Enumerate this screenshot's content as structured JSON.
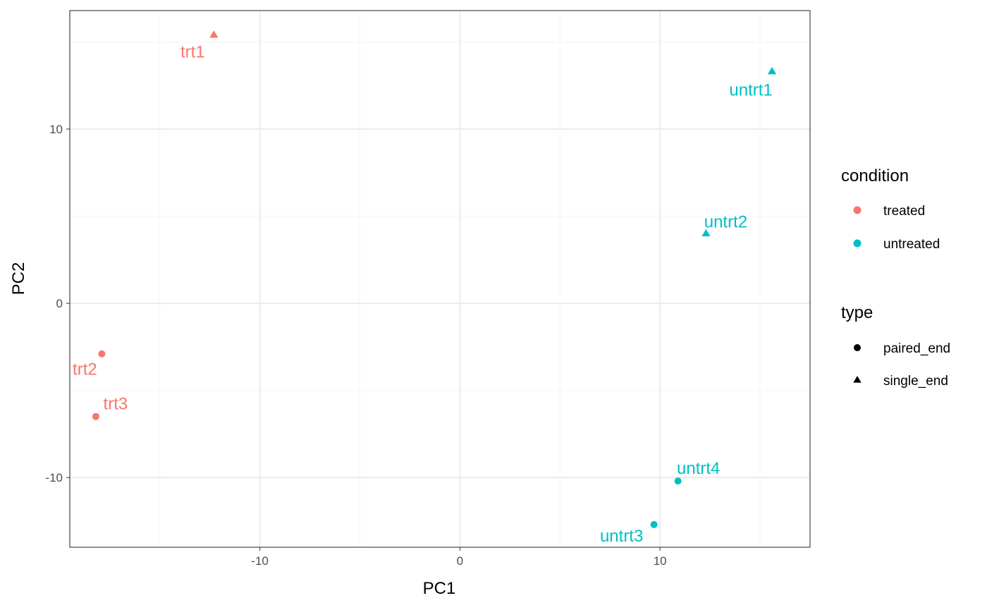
{
  "chart_data": {
    "type": "scatter",
    "xlabel": "PC1",
    "ylabel": "PC2",
    "xlim": [
      -19.5,
      17.5
    ],
    "ylim": [
      -14.0,
      16.8
    ],
    "x_ticks": [
      -10,
      0,
      10
    ],
    "y_ticks": [
      -10,
      0,
      10
    ],
    "x_tick_labels": [
      "-10",
      "0",
      "10"
    ],
    "y_tick_labels": [
      "-10",
      "0",
      "10"
    ],
    "grid": true,
    "legend_position": "right",
    "points": [
      {
        "label": "trt1",
        "x": -12.3,
        "y": 15.4,
        "condition": "treated",
        "type": "single_end"
      },
      {
        "label": "trt2",
        "x": -17.9,
        "y": -2.9,
        "condition": "treated",
        "type": "paired_end"
      },
      {
        "label": "trt3",
        "x": -18.2,
        "y": -6.5,
        "condition": "treated",
        "type": "paired_end"
      },
      {
        "label": "untrt1",
        "x": 15.6,
        "y": 13.3,
        "condition": "untreated",
        "type": "single_end"
      },
      {
        "label": "untrt2",
        "x": 12.3,
        "y": 4.0,
        "condition": "untreated",
        "type": "single_end"
      },
      {
        "label": "untrt3",
        "x": 9.7,
        "y": -12.7,
        "condition": "untreated",
        "type": "paired_end"
      },
      {
        "label": "untrt4",
        "x": 10.9,
        "y": -10.2,
        "condition": "untreated",
        "type": "paired_end"
      }
    ],
    "legend": {
      "condition": {
        "title": "condition",
        "items": [
          {
            "label": "treated",
            "color": "#F8766D"
          },
          {
            "label": "untreated",
            "color": "#00BFC4"
          }
        ]
      },
      "type": {
        "title": "type",
        "items": [
          {
            "label": "paired_end",
            "shape": "circle"
          },
          {
            "label": "single_end",
            "shape": "triangle"
          }
        ]
      }
    },
    "colors": {
      "treated": "#F8766D",
      "untreated": "#00BFC4",
      "grid_major": "#ebebeb",
      "grid_minor": "#f5f5f5",
      "panel_border": "#333333"
    }
  }
}
